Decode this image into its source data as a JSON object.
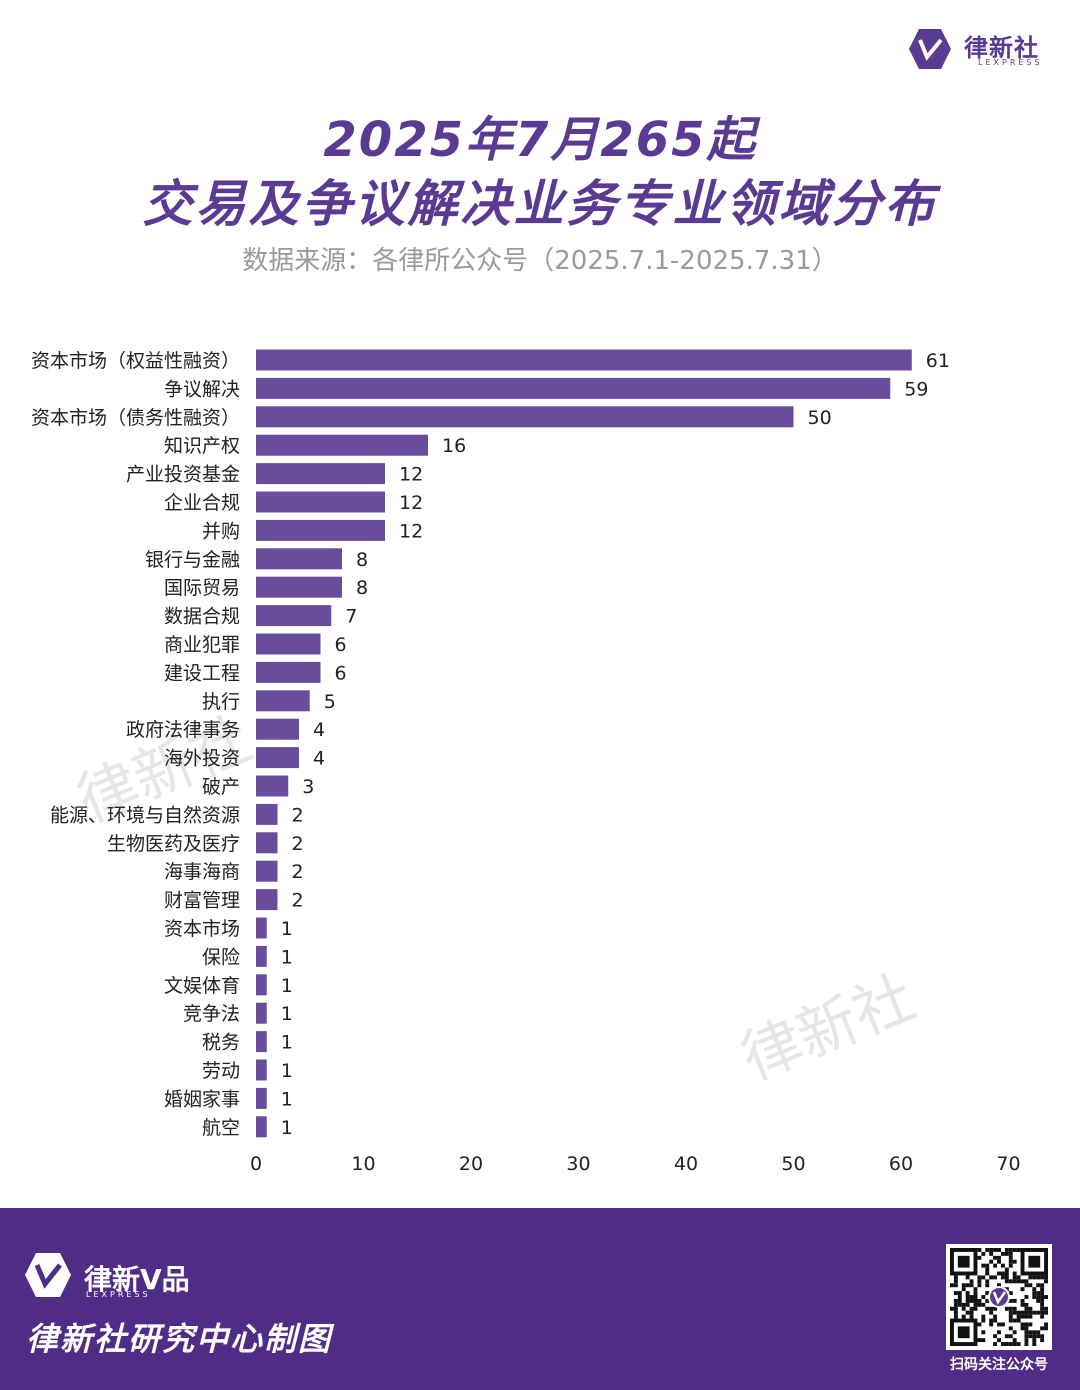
{
  "brand": {
    "name": "律新社",
    "sub": "LEXPRESS"
  },
  "title_line1": "2025年7月265起",
  "title_line2": "交易及争议解决业务专业领域分布",
  "subtitle": "数据来源：各律所公众号（2025.7.1-2025.7.31）",
  "watermark": "律新社",
  "colors": {
    "bar": "#6a4c9c",
    "title": "#5b3a93",
    "footer": "#4f2d86"
  },
  "chart_data": {
    "type": "bar",
    "orientation": "horizontal",
    "categories": [
      "资本市场（权益性融资）",
      "争议解决",
      "资本市场（债务性融资）",
      "知识产权",
      "产业投资基金",
      "企业合规",
      "并购",
      "银行与金融",
      "国际贸易",
      "数据合规",
      "商业犯罪",
      "建设工程",
      "执行",
      "政府法律事务",
      "海外投资",
      "破产",
      "能源、环境与自然资源",
      "生物医药及医疗",
      "海事海商",
      "财富管理",
      "资本市场",
      "保险",
      "文娱体育",
      "竞争法",
      "税务",
      "劳动",
      "婚姻家事",
      "航空"
    ],
    "values": [
      61,
      59,
      50,
      16,
      12,
      12,
      12,
      8,
      8,
      7,
      6,
      6,
      5,
      4,
      4,
      3,
      2,
      2,
      2,
      2,
      1,
      1,
      1,
      1,
      1,
      1,
      1,
      1
    ],
    "xlim": [
      0,
      70
    ],
    "xticks": [
      0,
      10,
      20,
      30,
      40,
      50,
      60,
      70
    ],
    "grid": false,
    "legend": false
  },
  "footer": {
    "brand_name": "律新V品",
    "brand_sub": "LEXPRESS",
    "credit": "律新社研究中心制图",
    "qr_caption": "扫码关注公众号"
  },
  "icons": {
    "top_logo": "lexpress-logo-icon",
    "footer_logo": "lexpress-logo-icon",
    "qr": "qr-code-icon"
  }
}
